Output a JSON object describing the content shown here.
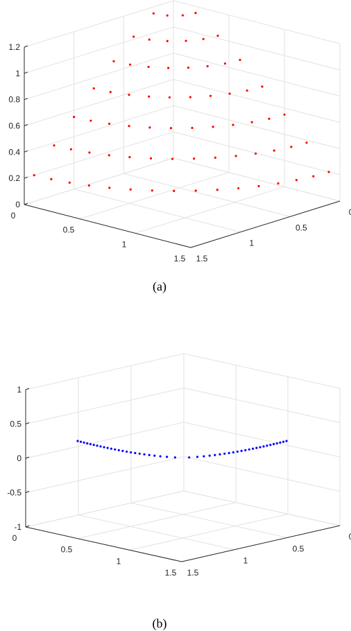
{
  "chart_data": [
    {
      "type": "scatter3d",
      "caption": "(a)",
      "marker_color": "#ff0000",
      "zlim": [
        0,
        1.2
      ],
      "xlim": [
        0,
        1.5
      ],
      "ylim": [
        0,
        1.5
      ],
      "grid": true,
      "z_ticks": [
        "0",
        "0.2",
        "0.4",
        "0.6",
        "0.8",
        "1",
        "1.2"
      ],
      "x_ticks": [
        "0",
        "0.5",
        "1",
        "1.5"
      ],
      "y_ticks": [
        "0",
        "0.5",
        "1",
        "1.5"
      ],
      "surface": {
        "description_values": "z = 0.2 + sqrt(x^2 + y^2) style cone sampled on quarter circles",
        "rings": [
          {
            "r": 0.0,
            "z": 1.25,
            "n": 1
          },
          {
            "r": 0.2,
            "z": 1.15,
            "n": 4
          },
          {
            "r": 0.4,
            "z": 1.02,
            "n": 6
          },
          {
            "r": 0.6,
            "z": 0.88,
            "n": 8
          },
          {
            "r": 0.8,
            "z": 0.72,
            "n": 10
          },
          {
            "r": 1.0,
            "z": 0.55,
            "n": 12
          },
          {
            "r": 1.2,
            "z": 0.38,
            "n": 14
          },
          {
            "r": 1.4,
            "z": 0.2,
            "n": 16
          }
        ]
      }
    },
    {
      "type": "scatter3d",
      "caption": "(b)",
      "marker_color": "#0000ff",
      "zlim": [
        -1,
        1
      ],
      "xlim": [
        0,
        1.5
      ],
      "ylim": [
        0,
        1.5
      ],
      "grid": true,
      "z_ticks": [
        "-1",
        "-0.5",
        "0",
        "0.5",
        "1"
      ],
      "x_ticks": [
        "0",
        "0.5",
        "1",
        "1.5"
      ],
      "y_ticks": [
        "0",
        "0.5",
        "1",
        "1.5"
      ],
      "curve": {
        "points": 48,
        "z_edge": 0.2,
        "z_center": 0.0
      }
    }
  ]
}
